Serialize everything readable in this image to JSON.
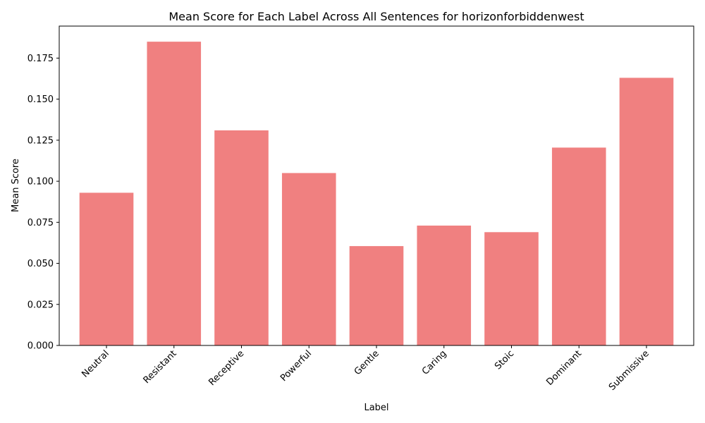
{
  "chart_data": {
    "type": "bar",
    "title": "Mean Score for Each Label Across All Sentences for horizonforbiddenwest",
    "xlabel": "Label",
    "ylabel": "Mean Score",
    "categories": [
      "Neutral",
      "Resistant",
      "Receptive",
      "Powerful",
      "Gentle",
      "Caring",
      "Stoic",
      "Dominant",
      "Submissive"
    ],
    "values": [
      0.093,
      0.185,
      0.131,
      0.105,
      0.0605,
      0.073,
      0.069,
      0.1205,
      0.163
    ],
    "ylim": [
      0,
      0.1945
    ],
    "yticks": [
      "0.000",
      "0.025",
      "0.050",
      "0.075",
      "0.100",
      "0.125",
      "0.150",
      "0.175"
    ],
    "bar_color": "#f08080",
    "grid": false,
    "legend": "none"
  }
}
